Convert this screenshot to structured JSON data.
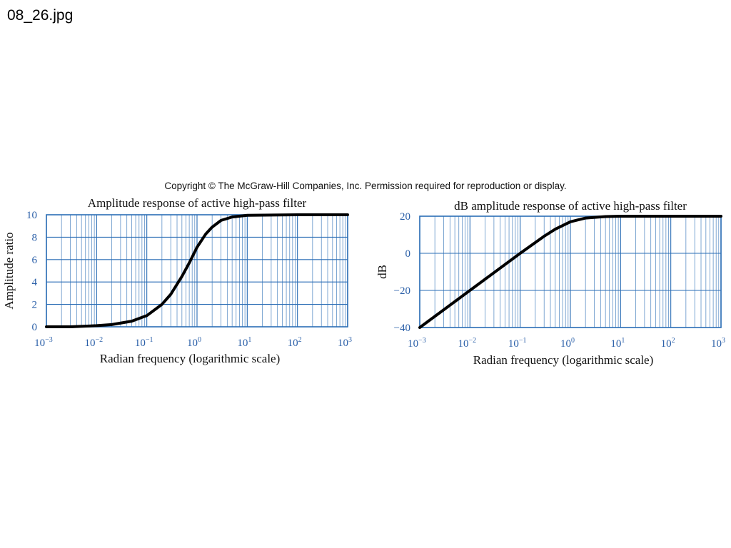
{
  "file_label": "08_26.jpg",
  "copyright": "Copyright © The McGraw-Hill Companies, Inc. Permission required for reproduction or display.",
  "colors": {
    "grid": "#2a6db5",
    "curve": "#000000",
    "tick_text": "#2a5fa8"
  },
  "chart_data": [
    {
      "type": "line",
      "title": "Amplitude response of active high-pass  filter",
      "xlabel": "Radian frequency (logarithmic scale)",
      "ylabel": "Amplitude ratio",
      "xscale": "log",
      "xlim": [
        0.001,
        1000
      ],
      "ylim": [
        0,
        10
      ],
      "grid": true,
      "x_ticks": [
        {
          "base": "10",
          "exp": "−3"
        },
        {
          "base": "10",
          "exp": "−2"
        },
        {
          "base": "10",
          "exp": "−1"
        },
        {
          "base": "10",
          "exp": "0"
        },
        {
          "base": "10",
          "exp": "1"
        },
        {
          "base": "10",
          "exp": "2"
        },
        {
          "base": "10",
          "exp": "3"
        }
      ],
      "y_ticks": [
        "0",
        "2",
        "4",
        "6",
        "8",
        "10"
      ],
      "y_tick_values": [
        0,
        2,
        4,
        6,
        8,
        10
      ],
      "series": [
        {
          "x": [
            0.001,
            0.003,
            0.01,
            0.02,
            0.05,
            0.1,
            0.2,
            0.3,
            0.5,
            0.7,
            1,
            1.5,
            2,
            3,
            5,
            10,
            100,
            1000
          ],
          "y": [
            0.0,
            0.0,
            0.1,
            0.2,
            0.5,
            1.0,
            2.0,
            2.9,
            4.5,
            5.7,
            7.1,
            8.3,
            8.9,
            9.5,
            9.8,
            9.95,
            10.0,
            10.0
          ]
        }
      ]
    },
    {
      "type": "line",
      "title": "dB amplitude response of active high-pass filter",
      "xlabel": "Radian frequency (logarithmic scale)",
      "ylabel": "dB",
      "xscale": "log",
      "xlim": [
        0.001,
        1000
      ],
      "ylim": [
        -40,
        20
      ],
      "grid": true,
      "x_ticks": [
        {
          "base": "10",
          "exp": "−3"
        },
        {
          "base": "10",
          "exp": "−2"
        },
        {
          "base": "10",
          "exp": "−1"
        },
        {
          "base": "10",
          "exp": "0"
        },
        {
          "base": "10",
          "exp": "1"
        },
        {
          "base": "10",
          "exp": "2"
        },
        {
          "base": "10",
          "exp": "3"
        }
      ],
      "y_ticks": [
        "−40",
        "−20",
        "0",
        "20"
      ],
      "y_tick_values": [
        -40,
        -20,
        0,
        20
      ],
      "series": [
        {
          "x": [
            0.001,
            0.01,
            0.1,
            0.3,
            0.5,
            1,
            2,
            5,
            10,
            100,
            1000
          ],
          "y": [
            -40.0,
            -20.0,
            0.0,
            9.2,
            13.0,
            17.0,
            19.0,
            19.8,
            20.0,
            20.0,
            20.0
          ]
        }
      ]
    }
  ]
}
